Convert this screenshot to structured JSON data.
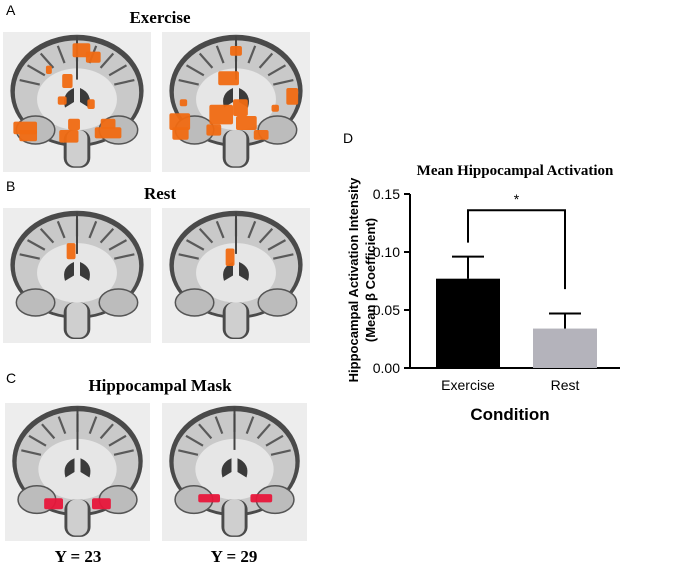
{
  "panels": {
    "a": {
      "letter": "A",
      "title": "Exercise"
    },
    "b": {
      "letter": "B",
      "title": "Rest"
    },
    "c": {
      "letter": "C",
      "title": "Hippocampal Mask",
      "coords": [
        "Y = 23",
        "Y = 29"
      ]
    },
    "d": {
      "letter": "D"
    }
  },
  "colors": {
    "activation": "#f06a12",
    "mask": "#e8163a",
    "exercise_bar": "#000000",
    "rest_bar": "#b4b3bb"
  },
  "chart_data": {
    "type": "bar",
    "title": "Mean Hippocampal Activation",
    "xlabel": "Condition",
    "ylabel": "Hippocampal Activation Intensity",
    "ylabel2": "(Mean β Coefficient)",
    "categories": [
      "Exercise",
      "Rest"
    ],
    "values": [
      0.077,
      0.034
    ],
    "errors": [
      0.019,
      0.013
    ],
    "ylim": [
      0,
      0.15
    ],
    "yticks": [
      "0.00",
      "0.05",
      "0.10",
      "0.15"
    ],
    "ytick_values": [
      0,
      0.05,
      0.1,
      0.15
    ],
    "significance": "*",
    "grid": false
  }
}
